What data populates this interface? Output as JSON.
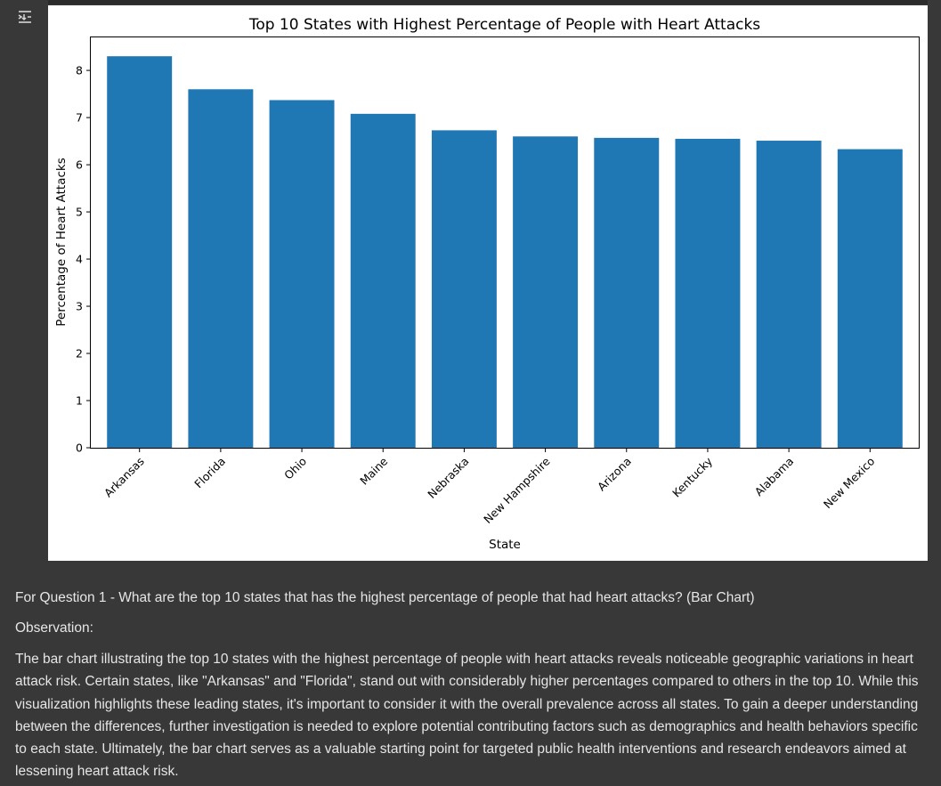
{
  "cell": {
    "gutter_icon": "output-collapse-icon"
  },
  "chart_data": {
    "type": "bar",
    "title": "Top 10 States with Highest Percentage of People with Heart Attacks",
    "xlabel": "State",
    "ylabel": "Percentage of Heart Attacks",
    "categories": [
      "Arkansas",
      "Florida",
      "Ohio",
      "Maine",
      "Nebraska",
      "New Hampshire",
      "Arizona",
      "Kentucky",
      "Alabama",
      "New Mexico"
    ],
    "values": [
      8.3,
      7.6,
      7.37,
      7.08,
      6.73,
      6.6,
      6.57,
      6.55,
      6.51,
      6.33
    ],
    "ylim": [
      0,
      8.7
    ],
    "yticks": [
      "0",
      "1",
      "2",
      "3",
      "4",
      "5",
      "6",
      "7",
      "8"
    ],
    "bar_color": "#1f77b4",
    "grid": false
  },
  "text": {
    "question": "For Question 1 - What are the top 10 states that has the highest percentage of people that had heart attacks? (Bar Chart)",
    "observation_label": "Observation:",
    "observation_body": "The bar chart illustrating the top 10 states with the highest percentage of people with heart attacks reveals noticeable geographic variations in heart attack risk. Certain states, like \"Arkansas\" and \"Florida\", stand out with considerably higher percentages compared to others in the top 10. While this visualization highlights these leading states, it's important to consider it with the overall prevalence across all states. To gain a deeper understanding between the differences, further investigation is needed to explore potential contributing factors such as demographics and health behaviors specific to each state. Ultimately, the bar chart serves as a valuable starting point for targeted public health interventions and research endeavors aimed at lessening heart attack risk."
  }
}
